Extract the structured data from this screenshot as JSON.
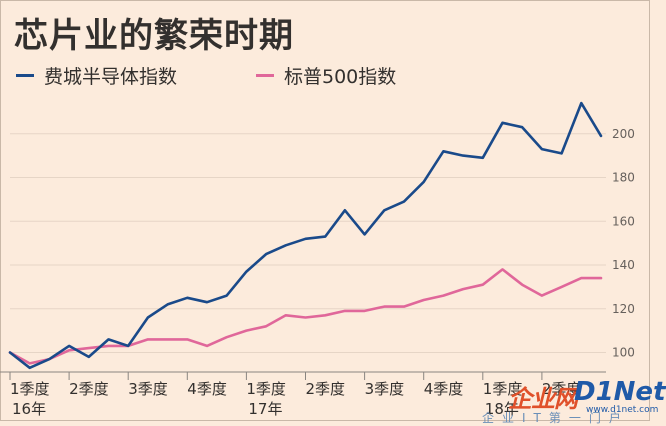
{
  "title": "芯片业的繁荣时期",
  "legend": [
    {
      "name": "费城半导体指数",
      "color": "#1a4a8a"
    },
    {
      "name": "标普500指数",
      "color": "#e0679a"
    }
  ],
  "watermark": {
    "text1": "企业网",
    "text2": "D1Net",
    "url": "www.d1net.com",
    "sub": "企业IT第一门户"
  },
  "chart_data": {
    "type": "line",
    "title": "芯片业的繁荣时期",
    "xlabel": "",
    "ylabel": "",
    "ylim": [
      92,
      220
    ],
    "yticks": [
      100,
      120,
      140,
      160,
      180,
      200
    ],
    "grid": true,
    "legend_position": "top",
    "x_tick_labels": [
      {
        "label": "1季度",
        "year": "16年",
        "index": 0
      },
      {
        "label": "2季度",
        "year": "",
        "index": 3
      },
      {
        "label": "3季度",
        "year": "",
        "index": 6
      },
      {
        "label": "4季度",
        "year": "",
        "index": 9
      },
      {
        "label": "1季度",
        "year": "17年",
        "index": 12
      },
      {
        "label": "2季度",
        "year": "",
        "index": 15
      },
      {
        "label": "3季度",
        "year": "",
        "index": 18
      },
      {
        "label": "4季度",
        "year": "",
        "index": 21
      },
      {
        "label": "1季度",
        "year": "18年",
        "index": 24
      },
      {
        "label": "2季度",
        "year": "",
        "index": 27
      }
    ],
    "series": [
      {
        "name": "费城半导体指数",
        "color": "#1a4a8a",
        "values": [
          100,
          93,
          97,
          103,
          98,
          106,
          103,
          116,
          122,
          125,
          123,
          126,
          137,
          145,
          149,
          152,
          153,
          165,
          154,
          165,
          169,
          178,
          192,
          190,
          189,
          205,
          203,
          193,
          191,
          214,
          199
        ]
      },
      {
        "name": "标普500指数",
        "color": "#e0679a",
        "values": [
          100,
          95,
          97,
          101,
          102,
          103,
          103,
          106,
          106,
          106,
          103,
          107,
          110,
          112,
          117,
          116,
          117,
          119,
          119,
          121,
          121,
          124,
          126,
          129,
          131,
          138,
          131,
          126,
          130,
          134,
          134
        ]
      }
    ]
  }
}
